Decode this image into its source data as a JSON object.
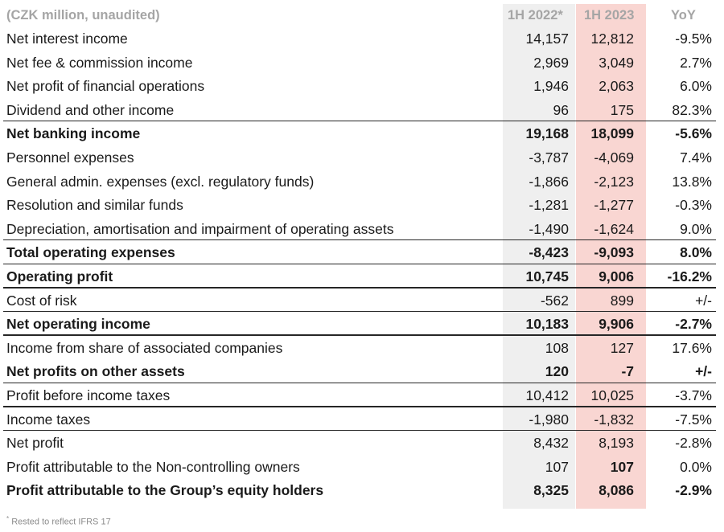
{
  "header": {
    "unit": "(CZK million, unaudited)",
    "col1": "1H 2022*",
    "col2": "1H 2023",
    "col3": "YoY"
  },
  "rows": [
    {
      "label": "Net interest income",
      "v22": "14,157",
      "v23": "12,812",
      "yoy": "-9.5%",
      "bold": false,
      "border": false
    },
    {
      "label": "Net fee & commission income",
      "v22": "2,969",
      "v23": "3,049",
      "yoy": "2.7%",
      "bold": false,
      "border": false
    },
    {
      "label": "Net profit of financial operations",
      "v22": "1,946",
      "v23": "2,063",
      "yoy": "6.0%",
      "bold": false,
      "border": false
    },
    {
      "label": "Dividend and other income",
      "v22": "96",
      "v23": "175",
      "yoy": "82.3%",
      "bold": false,
      "border": true
    },
    {
      "label": "Net banking income",
      "v22": "19,168",
      "v23": "18,099",
      "yoy": "-5.6%",
      "bold": true,
      "border": false
    },
    {
      "label": "Personnel expenses",
      "v22": "-3,787",
      "v23": "-4,069",
      "yoy": "7.4%",
      "bold": false,
      "border": false
    },
    {
      "label": "General admin. expenses (excl. regulatory funds)",
      "v22": "-1,866",
      "v23": "-2,123",
      "yoy": "13.8%",
      "bold": false,
      "border": false
    },
    {
      "label": "Resolution and similar funds",
      "v22": "-1,281",
      "v23": "-1,277",
      "yoy": "-0.3%",
      "bold": false,
      "border": false
    },
    {
      "label": "Depreciation, amortisation and impairment of operating assets",
      "v22": "-1,490",
      "v23": "-1,624",
      "yoy": "9.0%",
      "bold": false,
      "border": true
    },
    {
      "label": "Total operating expenses",
      "v22": "-8,423",
      "v23": "-9,093",
      "yoy": "8.0%",
      "bold": true,
      "border": true
    },
    {
      "label": "Operating profit",
      "v22": "10,745",
      "v23": "9,006",
      "yoy": "-16.2%",
      "bold": true,
      "border": true
    },
    {
      "label": "Cost of risk",
      "v22": "-562",
      "v23": "899",
      "yoy": "+/-",
      "bold": false,
      "border": true
    },
    {
      "label": "Net operating income",
      "v22": "10,183",
      "v23": "9,906",
      "yoy": "-2.7%",
      "bold": true,
      "border": true
    },
    {
      "label": "Income from share of associated companies",
      "v22": "108",
      "v23": "127",
      "yoy": "17.6%",
      "bold": false,
      "border": false
    },
    {
      "label": "Net profits on other assets",
      "v22": "120",
      "v23": "-7",
      "yoy": "+/-",
      "bold": true,
      "border": true
    },
    {
      "label": "Profit before income taxes",
      "v22": "10,412",
      "v23": "10,025",
      "yoy": "-3.7%",
      "bold": false,
      "border": true
    },
    {
      "label": "Income taxes",
      "v22": "-1,980",
      "v23": "-1,832",
      "yoy": "-7.5%",
      "bold": false,
      "border": true
    },
    {
      "label": "Net profit",
      "v22": "8,432",
      "v23": "8,193",
      "yoy": "-2.8%",
      "bold": false,
      "border": false
    },
    {
      "label": "Profit attributable to the Non-controlling owners",
      "v22": "107",
      "v23": "107",
      "yoy": "0.0%",
      "bold": false,
      "border": false,
      "v23_bold": true
    },
    {
      "label": "Profit attributable to the Group’s equity holders",
      "v22": "8,325",
      "v23": "8,086",
      "yoy": "-2.9%",
      "bold": true,
      "border": false
    }
  ],
  "footnote": {
    "mark": "*",
    "text": "Rested to reflect IFRS 17"
  },
  "colors": {
    "col_2022_bg": "#efefef",
    "col_2023_bg": "#f9d6d2",
    "header_text": "#a5a5a5"
  }
}
